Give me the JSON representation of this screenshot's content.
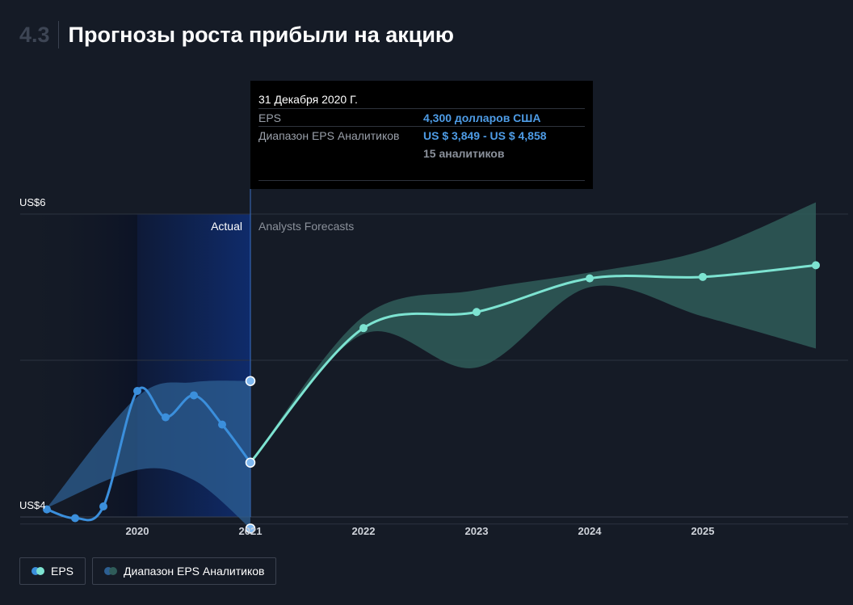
{
  "header": {
    "section_number": "4.3",
    "title": "Прогнозы роста прибыли на акцию"
  },
  "colors": {
    "background": "#151b26",
    "eps_actual": "#3b8fdc",
    "eps_forecast": "#7de3d1",
    "range_actual": "#2d5f92",
    "range_forecast": "#2f5c59",
    "tooltip_value": "#4e9ce6"
  },
  "tooltip": {
    "date": "31 Декабря 2020 Г.",
    "eps_label": "EPS",
    "eps_value": "4,300 долларов США",
    "range_label": "Диапазон EPS Аналитиков",
    "range_value": "US $ 3,849 - US $ 4,858",
    "analysts": "15 аналитиков"
  },
  "legend": {
    "eps": {
      "label": "EPS",
      "icons": [
        "circle-icon",
        "circle-icon"
      ]
    },
    "range": {
      "label": "Диапазон EPS Аналитиков",
      "icons": [
        "circle-icon",
        "circle-icon"
      ]
    }
  },
  "chart_data": {
    "type": "line",
    "xlabel": "",
    "ylabel": "",
    "x_ticks": [
      "2020",
      "2021",
      "2022",
      "2023",
      "2024",
      "2025"
    ],
    "y_ticks": [
      "US$6",
      "US$4"
    ],
    "ylim": [
      3.82,
      6.0
    ],
    "xlim": [
      2019.0,
      2026.0
    ],
    "grid": true,
    "region_labels": {
      "actual": "Actual",
      "forecast": "Analysts Forecasts"
    },
    "series": [
      {
        "name": "EPS",
        "actual": [
          {
            "x": 2019.2,
            "y": 3.98
          },
          {
            "x": 2019.45,
            "y": 3.92
          },
          {
            "x": 2019.7,
            "y": 4.0
          },
          {
            "x": 2020.0,
            "y": 4.79
          },
          {
            "x": 2020.25,
            "y": 4.61
          },
          {
            "x": 2020.5,
            "y": 4.76
          },
          {
            "x": 2020.75,
            "y": 4.56
          },
          {
            "x": 2021.0,
            "y": 4.3
          }
        ],
        "forecast": [
          {
            "x": 2021.0,
            "y": 4.3
          },
          {
            "x": 2022.0,
            "y": 5.22
          },
          {
            "x": 2023.0,
            "y": 5.33
          },
          {
            "x": 2024.0,
            "y": 5.56
          },
          {
            "x": 2025.0,
            "y": 5.57
          },
          {
            "x": 2026.0,
            "y": 5.65
          }
        ]
      },
      {
        "name": "Диапазон EPS Аналитиков",
        "actual": [
          {
            "x": 2019.2,
            "y": 3.99,
            "low": 3.99,
            "high": 3.99
          },
          {
            "x": 2020.0,
            "y": 4.5,
            "low": 4.25,
            "high": 4.75
          },
          {
            "x": 2020.5,
            "y": 4.5,
            "low": 4.18,
            "high": 4.85
          },
          {
            "x": 2021.0,
            "y": 4.35,
            "low": 3.849,
            "high": 4.858
          }
        ],
        "forecast": [
          {
            "x": 2021.0,
            "low": 4.3,
            "high": 4.3
          },
          {
            "x": 2022.0,
            "low": 5.18,
            "high": 5.3
          },
          {
            "x": 2023.0,
            "low": 4.95,
            "high": 5.48
          },
          {
            "x": 2024.0,
            "low": 5.5,
            "high": 5.6
          },
          {
            "x": 2025.0,
            "low": 5.3,
            "high": 5.75
          },
          {
            "x": 2026.0,
            "low": 5.08,
            "high": 6.08
          }
        ]
      }
    ]
  }
}
